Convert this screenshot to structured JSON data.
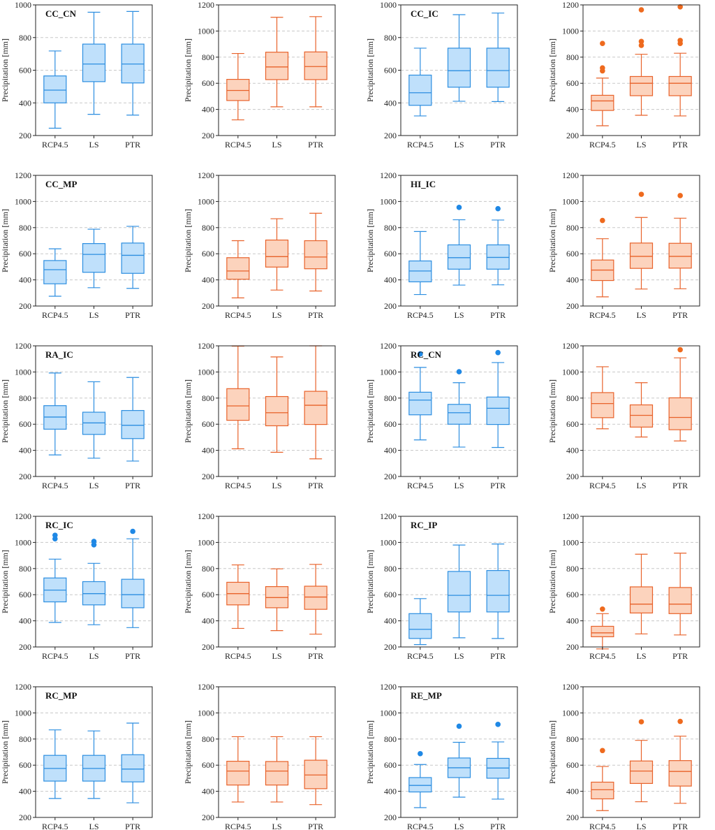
{
  "figure": {
    "colors": {
      "blue_fill": "#bfe0fb",
      "blue_line": "#2c8ee0",
      "blue_outlier": "#1f88e5",
      "orange_fill": "#fcd3bd",
      "orange_line": "#e8622a",
      "orange_outlier": "#ee6a1e",
      "grid": "#c8c8c8",
      "frame": "#222222"
    }
  },
  "chart_data": [
    {
      "type": "box",
      "title": "CC_CN",
      "color": "blue",
      "ylabel": "Precipitation [mm]",
      "ylim": [
        200,
        1000
      ],
      "yticks": [
        200,
        400,
        600,
        800,
        1000
      ],
      "categories": [
        "RCP4.5",
        "LS",
        "PTR"
      ],
      "boxes": [
        {
          "min": 245,
          "q1": 400,
          "median": 478,
          "q3": 565,
          "max": 718,
          "outliers": []
        },
        {
          "min": 330,
          "q1": 530,
          "median": 638,
          "q3": 760,
          "max": 955,
          "outliers": []
        },
        {
          "min": 325,
          "q1": 522,
          "median": 638,
          "q3": 760,
          "max": 960,
          "outliers": []
        }
      ]
    },
    {
      "type": "box",
      "title": "",
      "color": "orange",
      "ylabel": "Precipitation [mm]",
      "ylim": [
        200,
        1200
      ],
      "yticks": [
        200,
        400,
        600,
        800,
        1000,
        1200
      ],
      "categories": [
        "RCP4.5",
        "LS",
        "PTR"
      ],
      "boxes": [
        {
          "min": 320,
          "q1": 468,
          "median": 545,
          "q3": 630,
          "max": 828,
          "outliers": []
        },
        {
          "min": 420,
          "q1": 628,
          "median": 725,
          "q3": 838,
          "max": 1105,
          "outliers": []
        },
        {
          "min": 420,
          "q1": 628,
          "median": 728,
          "q3": 840,
          "max": 1110,
          "outliers": []
        }
      ]
    },
    {
      "type": "box",
      "title": "CC_IC",
      "color": "blue",
      "ylabel": "Precipitation [mm]",
      "ylim": [
        200,
        1000
      ],
      "yticks": [
        200,
        400,
        600,
        800,
        1000
      ],
      "categories": [
        "RCP4.5",
        "LS",
        "PTR"
      ],
      "boxes": [
        {
          "min": 320,
          "q1": 385,
          "median": 462,
          "q3": 570,
          "max": 735,
          "outliers": []
        },
        {
          "min": 410,
          "q1": 496,
          "median": 597,
          "q3": 735,
          "max": 940,
          "outliers": []
        },
        {
          "min": 408,
          "q1": 496,
          "median": 598,
          "q3": 735,
          "max": 950,
          "outliers": []
        }
      ]
    },
    {
      "type": "box",
      "title": "",
      "color": "orange",
      "ylabel": "Precipitation [mm]",
      "ylim": [
        200,
        1200
      ],
      "yticks": [
        200,
        400,
        600,
        800,
        1000,
        1200
      ],
      "categories": [
        "RCP4.5",
        "LS",
        "PTR"
      ],
      "boxes": [
        {
          "min": 275,
          "q1": 392,
          "median": 465,
          "q3": 508,
          "max": 640,
          "outliers": [
            695,
            718,
            905
          ]
        },
        {
          "min": 355,
          "q1": 505,
          "median": 600,
          "q3": 652,
          "max": 822,
          "outliers": [
            890,
            920,
            1162
          ]
        },
        {
          "min": 350,
          "q1": 505,
          "median": 600,
          "q3": 652,
          "max": 830,
          "outliers": [
            905,
            928,
            1185
          ]
        }
      ]
    },
    {
      "type": "box",
      "title": "CC_MP",
      "color": "blue",
      "ylabel": "Precipitation [mm]",
      "ylim": [
        200,
        1200
      ],
      "yticks": [
        200,
        400,
        600,
        800,
        1000,
        1200
      ],
      "categories": [
        "RCP4.5",
        "LS",
        "PTR"
      ],
      "boxes": [
        {
          "min": 275,
          "q1": 370,
          "median": 478,
          "q3": 548,
          "max": 638,
          "outliers": []
        },
        {
          "min": 340,
          "q1": 458,
          "median": 595,
          "q3": 678,
          "max": 788,
          "outliers": []
        },
        {
          "min": 335,
          "q1": 450,
          "median": 588,
          "q3": 682,
          "max": 810,
          "outliers": []
        }
      ]
    },
    {
      "type": "box",
      "title": "",
      "color": "orange",
      "ylabel": "Precipitation [mm]",
      "ylim": [
        200,
        1200
      ],
      "yticks": [
        200,
        400,
        600,
        800,
        1000,
        1200
      ],
      "categories": [
        "RCP4.5",
        "LS",
        "PTR"
      ],
      "boxes": [
        {
          "min": 262,
          "q1": 405,
          "median": 468,
          "q3": 570,
          "max": 700,
          "outliers": []
        },
        {
          "min": 322,
          "q1": 498,
          "median": 578,
          "q3": 705,
          "max": 868,
          "outliers": []
        },
        {
          "min": 315,
          "q1": 485,
          "median": 575,
          "q3": 700,
          "max": 910,
          "outliers": []
        }
      ]
    },
    {
      "type": "box",
      "title": "HI_IC",
      "color": "blue",
      "ylabel": "Precipitation [mm]",
      "ylim": [
        200,
        1200
      ],
      "yticks": [
        200,
        400,
        600,
        800,
        1000,
        1200
      ],
      "categories": [
        "RCP4.5",
        "LS",
        "PTR"
      ],
      "boxes": [
        {
          "min": 288,
          "q1": 385,
          "median": 468,
          "q3": 545,
          "max": 770,
          "outliers": []
        },
        {
          "min": 360,
          "q1": 482,
          "median": 570,
          "q3": 668,
          "max": 860,
          "outliers": [
            955
          ]
        },
        {
          "min": 362,
          "q1": 482,
          "median": 572,
          "q3": 668,
          "max": 858,
          "outliers": [
            945
          ]
        }
      ]
    },
    {
      "type": "box",
      "title": "",
      "color": "orange",
      "ylabel": "Precipitation [mm]",
      "ylim": [
        200,
        1200
      ],
      "yticks": [
        200,
        400,
        600,
        800,
        1000,
        1200
      ],
      "categories": [
        "RCP4.5",
        "LS",
        "PTR"
      ],
      "boxes": [
        {
          "min": 270,
          "q1": 395,
          "median": 475,
          "q3": 552,
          "max": 715,
          "outliers": [
            855
          ]
        },
        {
          "min": 330,
          "q1": 488,
          "median": 580,
          "q3": 682,
          "max": 878,
          "outliers": [
            1055
          ]
        },
        {
          "min": 332,
          "q1": 490,
          "median": 580,
          "q3": 680,
          "max": 872,
          "outliers": [
            1045
          ]
        }
      ]
    },
    {
      "type": "box",
      "title": "RA_IC",
      "color": "blue",
      "ylabel": "Precipitation [mm]",
      "ylim": [
        200,
        1200
      ],
      "yticks": [
        200,
        400,
        600,
        800,
        1000,
        1200
      ],
      "categories": [
        "RCP4.5",
        "LS",
        "PTR"
      ],
      "boxes": [
        {
          "min": 365,
          "q1": 562,
          "median": 655,
          "q3": 742,
          "max": 992,
          "outliers": []
        },
        {
          "min": 340,
          "q1": 522,
          "median": 610,
          "q3": 692,
          "max": 925,
          "outliers": []
        },
        {
          "min": 318,
          "q1": 490,
          "median": 592,
          "q3": 705,
          "max": 958,
          "outliers": []
        }
      ]
    },
    {
      "type": "box",
      "title": "",
      "color": "orange",
      "ylabel": "Precipitation [mm]",
      "ylim": [
        200,
        1200
      ],
      "yticks": [
        200,
        400,
        600,
        800,
        1000,
        1200
      ],
      "categories": [
        "RCP4.5",
        "LS",
        "PTR"
      ],
      "boxes": [
        {
          "min": 412,
          "q1": 630,
          "median": 740,
          "q3": 872,
          "max": 1198,
          "outliers": []
        },
        {
          "min": 385,
          "q1": 588,
          "median": 688,
          "q3": 812,
          "max": 1115,
          "outliers": []
        },
        {
          "min": 335,
          "q1": 598,
          "median": 745,
          "q3": 852,
          "max": 1200,
          "outliers": []
        }
      ]
    },
    {
      "type": "box",
      "title": "RC_CN",
      "color": "blue",
      "ylabel": "Precipitation [mm]",
      "ylim": [
        200,
        1200
      ],
      "yticks": [
        200,
        400,
        600,
        800,
        1000,
        1200
      ],
      "categories": [
        "RCP4.5",
        "LS",
        "PTR"
      ],
      "boxes": [
        {
          "min": 480,
          "q1": 672,
          "median": 785,
          "q3": 845,
          "max": 1035,
          "outliers": [
            1138
          ]
        },
        {
          "min": 425,
          "q1": 600,
          "median": 688,
          "q3": 752,
          "max": 918,
          "outliers": [
            1002
          ]
        },
        {
          "min": 422,
          "q1": 598,
          "median": 722,
          "q3": 808,
          "max": 1072,
          "outliers": [
            1148
          ]
        }
      ]
    },
    {
      "type": "box",
      "title": "",
      "color": "orange",
      "ylabel": "Precipitation [mm]",
      "ylim": [
        200,
        1200
      ],
      "yticks": [
        200,
        400,
        600,
        800,
        1000,
        1200
      ],
      "categories": [
        "RCP4.5",
        "LS",
        "PTR"
      ],
      "boxes": [
        {
          "min": 565,
          "q1": 650,
          "median": 758,
          "q3": 842,
          "max": 1040,
          "outliers": []
        },
        {
          "min": 502,
          "q1": 578,
          "median": 668,
          "q3": 748,
          "max": 918,
          "outliers": []
        },
        {
          "min": 472,
          "q1": 558,
          "median": 652,
          "q3": 802,
          "max": 1108,
          "outliers": [
            1170
          ]
        }
      ]
    },
    {
      "type": "box",
      "title": "RC_IC",
      "color": "blue",
      "ylabel": "Precipitation [mm]",
      "ylim": [
        200,
        1200
      ],
      "yticks": [
        200,
        400,
        600,
        800,
        1000,
        1200
      ],
      "categories": [
        "RCP4.5",
        "LS",
        "PTR"
      ],
      "boxes": [
        {
          "min": 388,
          "q1": 545,
          "median": 635,
          "q3": 728,
          "max": 872,
          "outliers": [
            1028,
            1055
          ]
        },
        {
          "min": 370,
          "q1": 522,
          "median": 608,
          "q3": 700,
          "max": 840,
          "outliers": [
            982,
            1008
          ]
        },
        {
          "min": 348,
          "q1": 500,
          "median": 600,
          "q3": 718,
          "max": 1028,
          "outliers": [
            1085
          ]
        }
      ]
    },
    {
      "type": "box",
      "title": "",
      "color": "orange",
      "ylabel": "Precipitation [mm]",
      "ylim": [
        200,
        1200
      ],
      "yticks": [
        200,
        400,
        600,
        800,
        1000,
        1200
      ],
      "categories": [
        "RCP4.5",
        "LS",
        "PTR"
      ],
      "boxes": [
        {
          "min": 342,
          "q1": 522,
          "median": 608,
          "q3": 695,
          "max": 828,
          "outliers": []
        },
        {
          "min": 325,
          "q1": 500,
          "median": 578,
          "q3": 662,
          "max": 798,
          "outliers": []
        },
        {
          "min": 298,
          "q1": 488,
          "median": 582,
          "q3": 665,
          "max": 832,
          "outliers": []
        }
      ]
    },
    {
      "type": "box",
      "title": "RC_IP",
      "color": "blue",
      "ylabel": "Precipitation [mm]",
      "ylim": [
        200,
        1200
      ],
      "yticks": [
        200,
        400,
        600,
        800,
        1000,
        1200
      ],
      "categories": [
        "RCP4.5",
        "LS",
        "PTR"
      ],
      "boxes": [
        {
          "min": 218,
          "q1": 265,
          "median": 335,
          "q3": 455,
          "max": 570,
          "outliers": []
        },
        {
          "min": 270,
          "q1": 468,
          "median": 595,
          "q3": 778,
          "max": 980,
          "outliers": []
        },
        {
          "min": 265,
          "q1": 468,
          "median": 595,
          "q3": 785,
          "max": 988,
          "outliers": []
        }
      ]
    },
    {
      "type": "box",
      "title": "",
      "color": "orange",
      "ylabel": "Precipitation [mm]",
      "ylim": [
        200,
        1200
      ],
      "yticks": [
        200,
        400,
        600,
        800,
        1000,
        1200
      ],
      "categories": [
        "RCP4.5",
        "LS",
        "PTR"
      ],
      "boxes": [
        {
          "min": 185,
          "q1": 278,
          "median": 308,
          "q3": 358,
          "max": 455,
          "outliers": [
            490
          ]
        },
        {
          "min": 300,
          "q1": 460,
          "median": 528,
          "q3": 660,
          "max": 910,
          "outliers": []
        },
        {
          "min": 292,
          "q1": 455,
          "median": 528,
          "q3": 655,
          "max": 918,
          "outliers": []
        }
      ]
    },
    {
      "type": "box",
      "title": "RC_MP",
      "color": "blue",
      "ylabel": "Precipitation [mm]",
      "ylim": [
        200,
        1200
      ],
      "yticks": [
        200,
        400,
        600,
        800,
        1000,
        1200
      ],
      "categories": [
        "RCP4.5",
        "LS",
        "PTR"
      ],
      "boxes": [
        {
          "min": 345,
          "q1": 478,
          "median": 575,
          "q3": 675,
          "max": 870,
          "outliers": []
        },
        {
          "min": 345,
          "q1": 478,
          "median": 575,
          "q3": 675,
          "max": 862,
          "outliers": []
        },
        {
          "min": 312,
          "q1": 472,
          "median": 570,
          "q3": 680,
          "max": 922,
          "outliers": []
        }
      ]
    },
    {
      "type": "box",
      "title": "",
      "color": "orange",
      "ylabel": "Precipitation [mm]",
      "ylim": [
        200,
        1200
      ],
      "yticks": [
        200,
        400,
        600,
        800,
        1000,
        1200
      ],
      "categories": [
        "RCP4.5",
        "LS",
        "PTR"
      ],
      "boxes": [
        {
          "min": 318,
          "q1": 448,
          "median": 555,
          "q3": 630,
          "max": 818,
          "outliers": []
        },
        {
          "min": 318,
          "q1": 448,
          "median": 555,
          "q3": 628,
          "max": 818,
          "outliers": []
        },
        {
          "min": 298,
          "q1": 420,
          "median": 525,
          "q3": 638,
          "max": 818,
          "outliers": []
        }
      ]
    },
    {
      "type": "box",
      "title": "RE_MP",
      "color": "blue",
      "ylabel": "Precipitation [mm]",
      "ylim": [
        200,
        1200
      ],
      "yticks": [
        200,
        400,
        600,
        800,
        1000,
        1200
      ],
      "categories": [
        "RCP4.5",
        "LS",
        "PTR"
      ],
      "boxes": [
        {
          "min": 275,
          "q1": 395,
          "median": 445,
          "q3": 505,
          "max": 605,
          "outliers": [
            688
          ]
        },
        {
          "min": 355,
          "q1": 505,
          "median": 580,
          "q3": 655,
          "max": 775,
          "outliers": [
            898
          ]
        },
        {
          "min": 340,
          "q1": 500,
          "median": 578,
          "q3": 652,
          "max": 778,
          "outliers": [
            912
          ]
        }
      ]
    },
    {
      "type": "box",
      "title": "",
      "color": "orange",
      "ylabel": "Precipitation [mm]",
      "ylim": [
        200,
        1200
      ],
      "yticks": [
        200,
        400,
        600,
        800,
        1000,
        1200
      ],
      "categories": [
        "RCP4.5",
        "LS",
        "PTR"
      ],
      "boxes": [
        {
          "min": 252,
          "q1": 342,
          "median": 412,
          "q3": 470,
          "max": 590,
          "outliers": [
            712
          ]
        },
        {
          "min": 320,
          "q1": 460,
          "median": 555,
          "q3": 632,
          "max": 790,
          "outliers": [
            932
          ]
        },
        {
          "min": 308,
          "q1": 440,
          "median": 552,
          "q3": 635,
          "max": 822,
          "outliers": [
            935
          ]
        }
      ]
    }
  ]
}
